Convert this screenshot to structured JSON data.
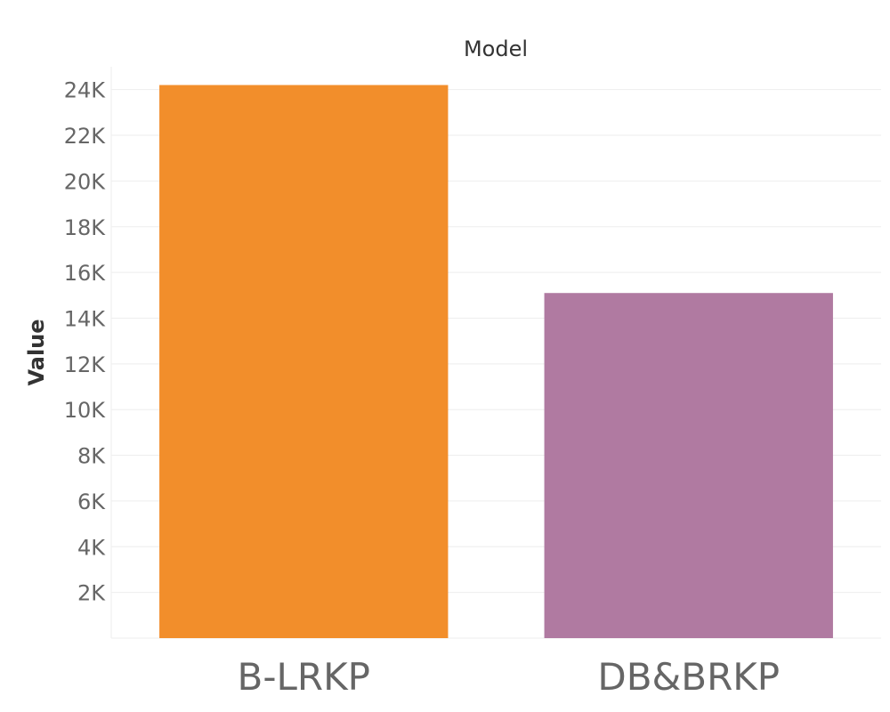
{
  "chart_data": {
    "type": "bar",
    "title": "Model",
    "xlabel": "",
    "ylabel": "Value",
    "categories": [
      "B-LRKP",
      "DB&BRKP"
    ],
    "values": [
      24200,
      15100
    ],
    "colors": [
      "#f28e2b",
      "#b07aa1"
    ],
    "ylim": [
      0,
      25000
    ],
    "yticks": [
      2000,
      4000,
      6000,
      8000,
      10000,
      12000,
      14000,
      16000,
      18000,
      20000,
      22000,
      24000
    ],
    "ytick_labels": [
      "2K",
      "4K",
      "6K",
      "8K",
      "10K",
      "12K",
      "14K",
      "16K",
      "18K",
      "20K",
      "22K",
      "24K"
    ],
    "grid": true,
    "legend": "none"
  }
}
